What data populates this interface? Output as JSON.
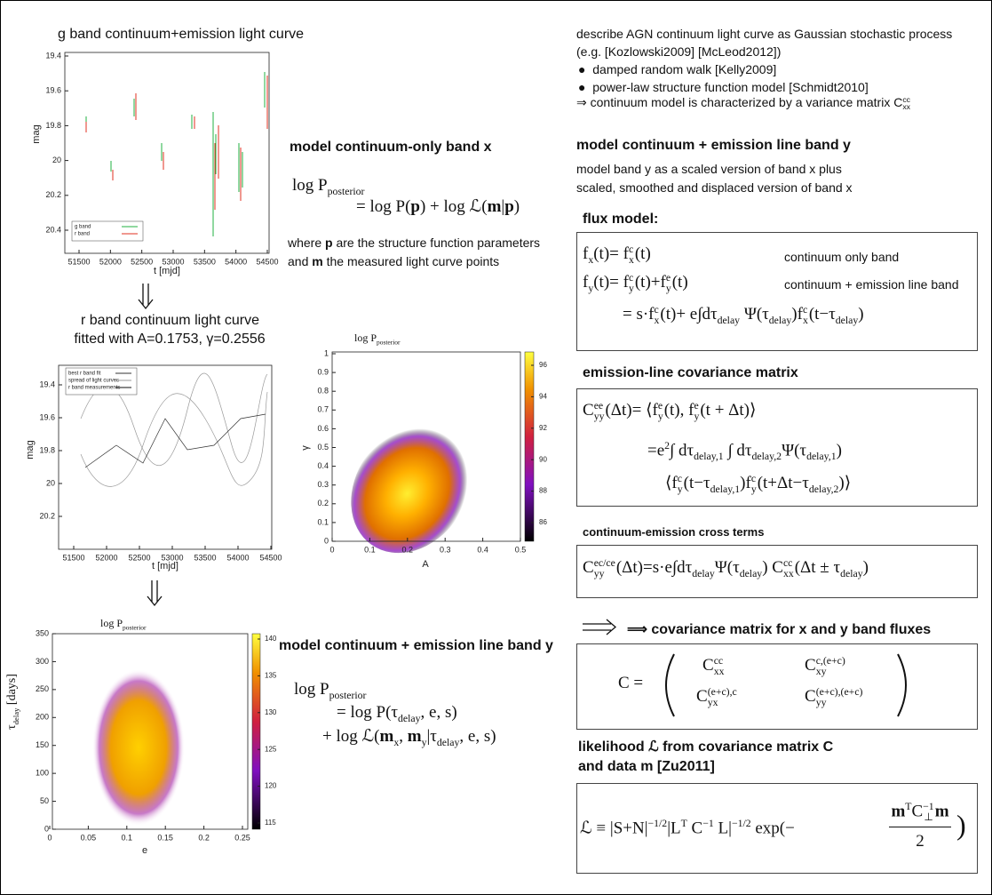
{
  "plots": {
    "g_band": {
      "title": "g band continuum+emission light curve",
      "xlabel": "t [mjd]",
      "ylabel": "mag",
      "xticks": [
        "51500",
        "52000",
        "52500",
        "53000",
        "53500",
        "54000",
        "54500"
      ],
      "yticks": [
        "19.4",
        "19.6",
        "19.8",
        "20",
        "20.2",
        "20.4"
      ],
      "legend": [
        "g band",
        "r band"
      ]
    },
    "r_band": {
      "title": [
        "r band continuum light curve",
        "fitted with A=0.1753, γ=0.2556"
      ],
      "xlabel": "t [mjd]",
      "ylabel": "mag",
      "xticks": [
        "51500",
        "52000",
        "52500",
        "53000",
        "53500",
        "54000",
        "54500"
      ],
      "yticks": [
        "19.4",
        "19.6",
        "19.8",
        "20",
        "20.2"
      ],
      "legend": [
        "best r band fit",
        "spread of light curves",
        "r band measurements"
      ]
    },
    "posterior_a_gamma": {
      "title": [
        "log ",
        "P",
        {
          "sub": "posterior"
        }
      ],
      "xlabel": "A",
      "ylabel": "γ",
      "xticks": [
        "0",
        "0.1",
        "0.2",
        "0.3",
        "0.4",
        "0.5"
      ],
      "yticks": [
        "0",
        "0.1",
        "0.2",
        "0.3",
        "0.4",
        "0.5",
        "0.6",
        "0.7",
        "0.8",
        "0.9",
        "1"
      ],
      "colorbar_ticks": [
        "86",
        "88",
        "90",
        "92",
        "94",
        "96"
      ]
    },
    "posterior_e_tau": {
      "title": [
        "log ",
        "P",
        {
          "sub": "posterior"
        }
      ],
      "xlabel": "e",
      "ylabel": [
        "τ",
        {
          "sub": "delay"
        },
        " [days]"
      ],
      "xticks": [
        "0",
        "0.05",
        "0.1",
        "0.15",
        "0.2",
        "0.25"
      ],
      "yticks": [
        "0",
        "50",
        "100",
        "150",
        "200",
        "250",
        "300",
        "350"
      ],
      "colorbar_ticks": [
        "115",
        "120",
        "125",
        "130",
        "135",
        "140"
      ]
    }
  },
  "middle": {
    "continuum_heading": "model continuum-only band x",
    "continuum_formula": [
      [
        "log ",
        "P",
        {
          "sub": "posterior"
        }
      ],
      [
        "= log ",
        "P",
        "(",
        {
          "bold": "p"
        },
        ") + log ℒ(",
        {
          "bold": "m"
        },
        "|",
        {
          "bold": "p"
        },
        ")"
      ]
    ],
    "continuum_where": [
      [
        "where ",
        {
          "bold": "p"
        },
        " are the structure function parameters"
      ],
      [
        "and ",
        {
          "bold": "m"
        },
        " the measured light curve points"
      ]
    ],
    "emission_heading": "model continuum + emission line band y",
    "emission_formula": [
      [
        "log ",
        "P",
        {
          "sub": "posterior"
        }
      ],
      [
        "= log ",
        "P",
        "(τ",
        {
          "sub": "delay"
        },
        ", e, s)"
      ],
      [
        "+ log ℒ(",
        {
          "bold": "m"
        },
        {
          "sub": "x"
        },
        ", ",
        {
          "bold": "m"
        },
        {
          "sub": "y"
        },
        "|τ",
        {
          "sub": "delay"
        },
        ", e, s)"
      ]
    ]
  },
  "right": {
    "intro": [
      "describe AGN continuum light curve as Gaussian stochastic process",
      "(e.g. [Kozlowski2009] [McLeod2012])"
    ],
    "bullets": [
      "damped random walk [Kelly2009]",
      "power-law structure function model [Schmidt2010]"
    ],
    "conclusion": [
      "⇒  continuum model is characterized by a variance matrix ",
      "C",
      {
        "sup": "cc",
        "sub": "xx"
      }
    ],
    "band_heading": "model continuum + emission line band y",
    "band_text": [
      "model band y as a scaled version of band x plus",
      "scaled, smoothed and displaced version of band x"
    ],
    "flux_heading": "flux model:",
    "flux_lines": [
      [
        "f",
        {
          "sub": "x"
        },
        "(t)= f",
        {
          "sup": "c",
          "sub": "x"
        },
        "(t)"
      ],
      [
        "f",
        {
          "sub": "y"
        },
        "(t)= f",
        {
          "sup": "c",
          "sub": "y"
        },
        "(t)+f",
        {
          "sup": "e",
          "sub": "y"
        },
        "(t)"
      ],
      [
        "= s·f",
        {
          "sup": "c",
          "sub": "x"
        },
        "(t)+ e∫dτ",
        {
          "sub": "delay"
        },
        " Ψ(τ",
        {
          "sub": "delay"
        },
        ")f",
        {
          "sup": "c",
          "sub": "x"
        },
        "(t−τ",
        {
          "sub": "delay"
        },
        ")"
      ]
    ],
    "flux_notes": [
      "continuum only band",
      "continuum + emission line band"
    ],
    "emission_heading": "emission-line covariance matrix",
    "emission_lines": [
      [
        "C",
        {
          "sup": "ee",
          "sub": "yy"
        },
        "(Δt)= ⟨f",
        {
          "sup": "e",
          "sub": "y"
        },
        "(t), f",
        {
          "sup": "e",
          "sub": "y"
        },
        "(t + Δt)⟩"
      ],
      [
        "=e",
        {
          "sup": "2"
        },
        "∫ dτ",
        {
          "sub": "delay,1"
        },
        " ∫ dτ",
        {
          "sub": "delay,2"
        },
        "Ψ(τ",
        {
          "sub": "delay,1"
        },
        ")"
      ],
      [
        "⟨f",
        {
          "sup": "c",
          "sub": "y"
        },
        "(t−τ",
        {
          "sub": "delay,1"
        },
        ")f",
        {
          "sup": "c",
          "sub": "y"
        },
        "(t+Δt−τ",
        {
          "sub": "delay,2"
        },
        ")⟩"
      ]
    ],
    "cross_heading": "continuum-emission cross terms",
    "cross_line": [
      "C",
      {
        "sup": "ec/ce",
        "sub": "yy"
      },
      "(Δt)=s·e∫dτ",
      {
        "sub": "delay"
      },
      "Ψ(τ",
      {
        "sub": "delay"
      },
      ") C",
      {
        "sup": "cc",
        "sub": "xx"
      },
      "(Δt ± τ",
      {
        "sub": "delay"
      },
      ")"
    ],
    "matrix_heading": "⟹  covariance matrix for x and y band fluxes",
    "matrix_lhs": "C =",
    "matrix_cells": [
      [
        "C",
        {
          "sup": "cc",
          "sub": "xx"
        }
      ],
      [
        "C",
        {
          "sup": "c,(e+c)",
          "sub": "xy"
        }
      ],
      [
        "C",
        {
          "sup": "(e+c),c",
          "sub": "yx"
        }
      ],
      [
        "C",
        {
          "sup": "(e+c),(e+c)",
          "sub": "yy"
        }
      ]
    ],
    "likelihood_heading": [
      [
        "likelihood ",
        "ℒ",
        " from covariance matrix ",
        "C"
      ],
      [
        "and data ",
        {
          "bold": "m"
        },
        " [Zu2011]"
      ]
    ],
    "likelihood_lhs": [
      "ℒ ≡ |S+N|",
      {
        "sup": "−1/2"
      },
      "|L",
      {
        "sup": "T"
      },
      " C",
      {
        "sup": "−1"
      },
      " L|",
      {
        "sup": "−1/2"
      },
      " exp(−"
    ],
    "likelihood_num": [
      {
        "bold": "m"
      },
      {
        "sup": "T"
      },
      "C",
      {
        "sup": "−1",
        "sub": "⊥"
      },
      {
        "bold": "m"
      }
    ],
    "likelihood_den": "2",
    "likelihood_close": ")"
  }
}
